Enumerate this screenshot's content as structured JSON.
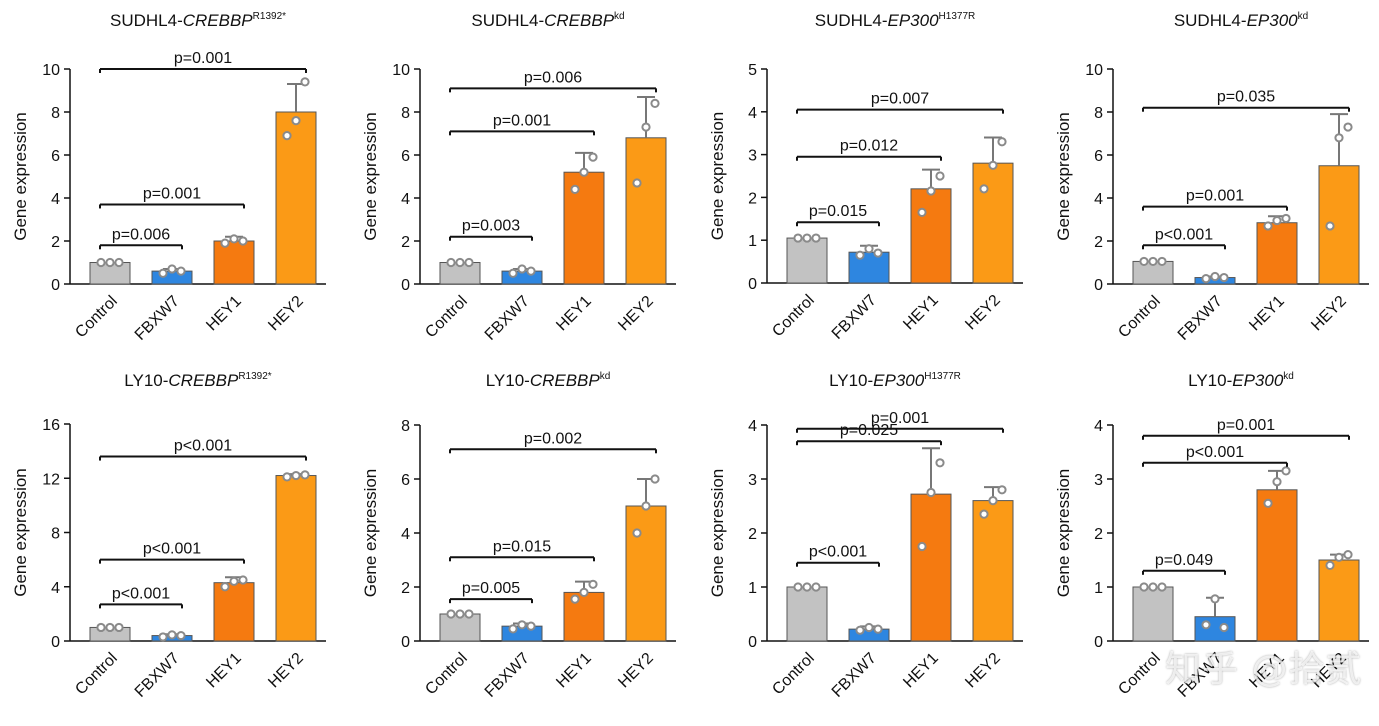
{
  "figure": {
    "ylabel": "Gene expression",
    "categories": [
      "Control",
      "FBXW7",
      "HEY1",
      "HEY2"
    ],
    "colors": [
      "#c2c2c2",
      "#2e86e0",
      "#f57a10",
      "#fb9a16"
    ],
    "point_color": "#8a8a8a",
    "watermark": "知乎 @拾贰"
  },
  "chart_data": [
    {
      "type": "bar",
      "title_prefix": "SUDHL4-",
      "title_gene": "CREBBP",
      "title_sup": "R1392*",
      "ylabel": "Gene expression",
      "categories": [
        "Control",
        "FBXW7",
        "HEY1",
        "HEY2"
      ],
      "values": [
        1.0,
        0.6,
        2.0,
        8.0
      ],
      "errors": [
        0.0,
        0.1,
        0.2,
        1.3
      ],
      "points": [
        [
          1.0,
          1.0,
          1.0
        ],
        [
          0.5,
          0.7,
          0.6
        ],
        [
          1.9,
          2.1,
          2.0
        ],
        [
          6.9,
          7.6,
          9.4
        ]
      ],
      "ylim": [
        0,
        10
      ],
      "yticks": [
        0,
        2,
        4,
        6,
        8,
        10
      ],
      "comparisons": [
        {
          "from": 0,
          "to": 1,
          "label": "p=0.006",
          "y": 1.8
        },
        {
          "from": 0,
          "to": 2,
          "label": "p=0.001",
          "y": 3.7
        },
        {
          "from": 0,
          "to": 3,
          "label": "p=0.001",
          "y": 10.0
        }
      ]
    },
    {
      "type": "bar",
      "title_prefix": "SUDHL4-",
      "title_gene": "CREBBP",
      "title_sup": "kd",
      "ylabel": "Gene expression",
      "categories": [
        "Control",
        "FBXW7",
        "HEY1",
        "HEY2"
      ],
      "values": [
        1.0,
        0.6,
        5.2,
        6.8
      ],
      "errors": [
        0.0,
        0.1,
        0.9,
        1.9
      ],
      "points": [
        [
          1.0,
          1.0,
          1.0
        ],
        [
          0.5,
          0.7,
          0.6
        ],
        [
          4.4,
          5.2,
          5.9
        ],
        [
          4.7,
          7.3,
          8.4
        ]
      ],
      "ylim": [
        0,
        10
      ],
      "yticks": [
        0,
        2,
        4,
        6,
        8,
        10
      ],
      "comparisons": [
        {
          "from": 0,
          "to": 1,
          "label": "p=0.003",
          "y": 2.2
        },
        {
          "from": 0,
          "to": 2,
          "label": "p=0.001",
          "y": 7.1
        },
        {
          "from": 0,
          "to": 3,
          "label": "p=0.006",
          "y": 9.1
        }
      ]
    },
    {
      "type": "bar",
      "title_prefix": "SUDHL4-",
      "title_gene": "EP300",
      "title_sup": "H1377R",
      "ylabel": "Gene expression",
      "categories": [
        "Control",
        "FBXW7",
        "HEY1",
        "HEY2"
      ],
      "values": [
        1.05,
        0.72,
        2.2,
        2.8
      ],
      "errors": [
        0.0,
        0.15,
        0.45,
        0.6
      ],
      "points": [
        [
          1.05,
          1.05,
          1.05
        ],
        [
          0.65,
          0.8,
          0.7
        ],
        [
          1.65,
          2.15,
          2.5
        ],
        [
          2.2,
          2.75,
          3.3
        ]
      ],
      "ylim": [
        0,
        5
      ],
      "yticks": [
        0,
        1,
        2,
        3,
        4,
        5
      ],
      "comparisons": [
        {
          "from": 0,
          "to": 1,
          "label": "p=0.015",
          "y": 1.42
        },
        {
          "from": 0,
          "to": 2,
          "label": "p=0.012",
          "y": 2.95
        },
        {
          "from": 0,
          "to": 3,
          "label": "p=0.007",
          "y": 4.05
        }
      ]
    },
    {
      "type": "bar",
      "title_prefix": "SUDHL4-",
      "title_gene": "EP300",
      "title_sup": "kd",
      "ylabel": "Gene expression",
      "categories": [
        "Control",
        "FBXW7",
        "HEY1",
        "HEY2"
      ],
      "values": [
        1.05,
        0.3,
        2.85,
        5.5
      ],
      "errors": [
        0.0,
        0.05,
        0.3,
        2.4
      ],
      "points": [
        [
          1.05,
          1.05,
          1.05
        ],
        [
          0.25,
          0.35,
          0.3
        ],
        [
          2.7,
          2.95,
          3.05
        ],
        [
          2.7,
          6.8,
          7.3
        ]
      ],
      "ylim": [
        0,
        10
      ],
      "yticks": [
        0,
        2,
        4,
        6,
        8,
        10
      ],
      "comparisons": [
        {
          "from": 0,
          "to": 1,
          "label": "p<0.001",
          "y": 1.8
        },
        {
          "from": 0,
          "to": 2,
          "label": "p=0.001",
          "y": 3.6
        },
        {
          "from": 0,
          "to": 3,
          "label": "p=0.035",
          "y": 8.2
        }
      ]
    },
    {
      "type": "bar",
      "title_prefix": "LY10-",
      "title_gene": "CREBBP",
      "title_sup": "R1392*",
      "ylabel": "Gene expression",
      "categories": [
        "Control",
        "FBXW7",
        "HEY1",
        "HEY2"
      ],
      "values": [
        1.0,
        0.4,
        4.3,
        12.2
      ],
      "errors": [
        0.0,
        0.1,
        0.4,
        0.1
      ],
      "points": [
        [
          1.0,
          1.0,
          1.0
        ],
        [
          0.3,
          0.45,
          0.4
        ],
        [
          4.0,
          4.4,
          4.5
        ],
        [
          12.1,
          12.2,
          12.25
        ]
      ],
      "ylim": [
        0,
        16
      ],
      "yticks": [
        0,
        4,
        8,
        12,
        16
      ],
      "comparisons": [
        {
          "from": 0,
          "to": 1,
          "label": "p<0.001",
          "y": 2.7
        },
        {
          "from": 0,
          "to": 2,
          "label": "p<0.001",
          "y": 6.0
        },
        {
          "from": 0,
          "to": 3,
          "label": "p<0.001",
          "y": 13.6
        }
      ]
    },
    {
      "type": "bar",
      "title_prefix": "LY10-",
      "title_gene": "CREBBP",
      "title_sup": "kd",
      "ylabel": "Gene expression",
      "categories": [
        "Control",
        "FBXW7",
        "HEY1",
        "HEY2"
      ],
      "values": [
        1.0,
        0.55,
        1.8,
        5.0
      ],
      "errors": [
        0.0,
        0.1,
        0.4,
        1.0
      ],
      "points": [
        [
          1.0,
          1.0,
          1.0
        ],
        [
          0.45,
          0.6,
          0.55
        ],
        [
          1.55,
          1.8,
          2.1
        ],
        [
          4.0,
          5.0,
          6.0
        ]
      ],
      "ylim": [
        0,
        8
      ],
      "yticks": [
        0,
        2,
        4,
        6,
        8
      ],
      "comparisons": [
        {
          "from": 0,
          "to": 1,
          "label": "p=0.005",
          "y": 1.55
        },
        {
          "from": 0,
          "to": 2,
          "label": "p=0.015",
          "y": 3.1
        },
        {
          "from": 0,
          "to": 3,
          "label": "p=0.002",
          "y": 7.1
        }
      ]
    },
    {
      "type": "bar",
      "title_prefix": "LY10-",
      "title_gene": "EP300",
      "title_sup": "H1377R",
      "ylabel": "Gene expression",
      "categories": [
        "Control",
        "FBXW7",
        "HEY1",
        "HEY2"
      ],
      "values": [
        1.0,
        0.22,
        2.72,
        2.6
      ],
      "errors": [
        0.0,
        0.05,
        0.85,
        0.25
      ],
      "points": [
        [
          1.0,
          1.0,
          1.0
        ],
        [
          0.2,
          0.25,
          0.22
        ],
        [
          1.75,
          2.75,
          3.3
        ],
        [
          2.35,
          2.6,
          2.8
        ]
      ],
      "ylim": [
        0,
        4
      ],
      "yticks": [
        0,
        1,
        2,
        3,
        4
      ],
      "comparisons": [
        {
          "from": 0,
          "to": 1,
          "label": "p<0.001",
          "y": 1.45
        },
        {
          "from": 0,
          "to": 2,
          "label": "p=0.025",
          "y": 3.7
        },
        {
          "from": 0,
          "to": 3,
          "label": "p=0.001",
          "y": 3.93
        }
      ]
    },
    {
      "type": "bar",
      "title_prefix": "LY10-",
      "title_gene": "EP300",
      "title_sup": "kd",
      "ylabel": "Gene expression",
      "categories": [
        "Control",
        "FBXW7",
        "HEY1",
        "HEY2"
      ],
      "values": [
        1.0,
        0.45,
        2.8,
        1.5
      ],
      "errors": [
        0.0,
        0.35,
        0.35,
        0.1
      ],
      "points": [
        [
          1.0,
          1.0,
          1.0
        ],
        [
          0.3,
          0.78,
          0.25
        ],
        [
          2.55,
          2.95,
          3.15
        ],
        [
          1.4,
          1.55,
          1.6
        ]
      ],
      "ylim": [
        0,
        4
      ],
      "yticks": [
        0,
        1,
        2,
        3,
        4
      ],
      "comparisons": [
        {
          "from": 0,
          "to": 1,
          "label": "p=0.049",
          "y": 1.3
        },
        {
          "from": 0,
          "to": 2,
          "label": "p<0.001",
          "y": 3.3
        },
        {
          "from": 0,
          "to": 3,
          "label": "p=0.001",
          "y": 3.8
        }
      ]
    }
  ]
}
